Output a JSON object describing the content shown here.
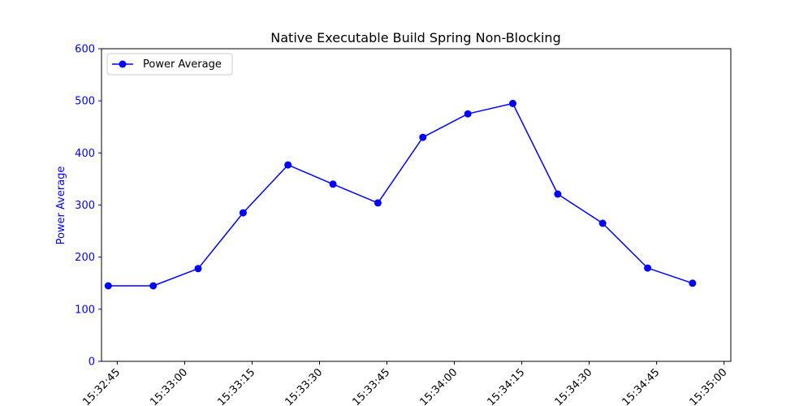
{
  "chart_data": {
    "type": "line",
    "title": "Native Executable Build Spring Non-Blocking",
    "xlabel": "",
    "ylabel": "Power Average",
    "ylim": [
      0,
      600
    ],
    "yticks": [
      0,
      100,
      200,
      300,
      400,
      500,
      600
    ],
    "xlim": [
      "15:32:41.5",
      "15:35:01.5"
    ],
    "xticks": [
      "15:32:45",
      "15:33:00",
      "15:33:15",
      "15:33:30",
      "15:33:45",
      "15:34:00",
      "15:34:15",
      "15:34:30",
      "15:34:45",
      "15:35:00"
    ],
    "grid": false,
    "legend_position": "top-left",
    "series": [
      {
        "name": "Power Average",
        "color": "#0000ff",
        "marker": "circle",
        "points": [
          {
            "x": "15:32:43",
            "y": 145
          },
          {
            "x": "15:32:53",
            "y": 145
          },
          {
            "x": "15:33:03",
            "y": 178
          },
          {
            "x": "15:33:13",
            "y": 285
          },
          {
            "x": "15:33:23",
            "y": 377
          },
          {
            "x": "15:33:33",
            "y": 340
          },
          {
            "x": "15:33:43",
            "y": 304
          },
          {
            "x": "15:33:53",
            "y": 430
          },
          {
            "x": "15:34:03",
            "y": 475
          },
          {
            "x": "15:34:13",
            "y": 495
          },
          {
            "x": "15:34:23",
            "y": 321
          },
          {
            "x": "15:34:33",
            "y": 265
          },
          {
            "x": "15:34:43",
            "y": 179
          },
          {
            "x": "15:34:53",
            "y": 150
          }
        ]
      }
    ]
  }
}
